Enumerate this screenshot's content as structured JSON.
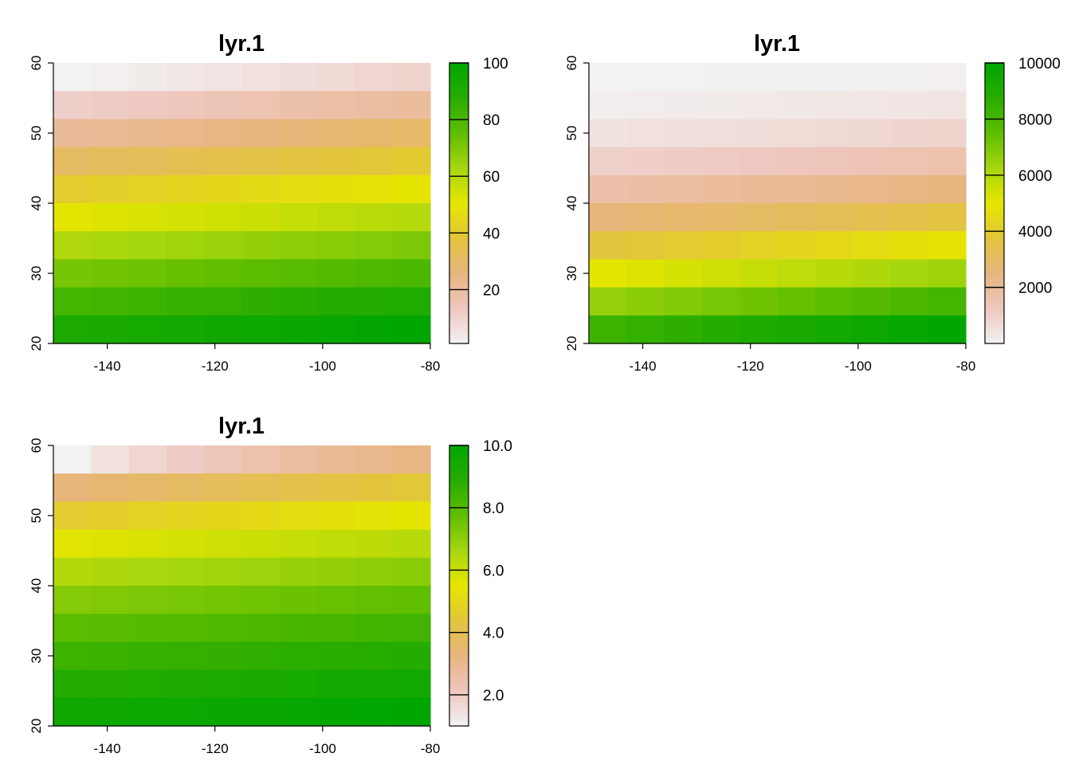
{
  "chart_data": [
    {
      "type": "heatmap",
      "title": "lyr.1",
      "x_ticks": [
        -140,
        -120,
        -100,
        -80
      ],
      "y_ticks": [
        20,
        30,
        40,
        50,
        60
      ],
      "xlim": [
        -150,
        -80
      ],
      "ylim": [
        20,
        60
      ],
      "grid": false,
      "legend": {
        "position": "right",
        "range": [
          1,
          100
        ],
        "ticks": [
          20,
          40,
          60,
          80,
          100
        ],
        "tick_labels": [
          "20",
          "40",
          "60",
          "80",
          "100"
        ]
      },
      "ncols": 10,
      "nrows": 10,
      "cells": [
        [
          1,
          2,
          3,
          4,
          5,
          6,
          7,
          8,
          9,
          10
        ],
        [
          11,
          12,
          13,
          14,
          15,
          16,
          17,
          18,
          19,
          20
        ],
        [
          21,
          22,
          23,
          24,
          25,
          26,
          27,
          28,
          29,
          30
        ],
        [
          31,
          32,
          33,
          34,
          35,
          36,
          37,
          38,
          39,
          40
        ],
        [
          41,
          42,
          43,
          44,
          45,
          46,
          47,
          48,
          49,
          50
        ],
        [
          51,
          52,
          53,
          54,
          55,
          56,
          57,
          58,
          59,
          60
        ],
        [
          61,
          62,
          63,
          64,
          65,
          66,
          67,
          68,
          69,
          70
        ],
        [
          71,
          72,
          73,
          74,
          75,
          76,
          77,
          78,
          79,
          80
        ],
        [
          81,
          82,
          83,
          84,
          85,
          86,
          87,
          88,
          89,
          90
        ],
        [
          91,
          92,
          93,
          94,
          95,
          96,
          97,
          98,
          99,
          100
        ]
      ]
    },
    {
      "type": "heatmap",
      "title": "lyr.1",
      "x_ticks": [
        -140,
        -120,
        -100,
        -80
      ],
      "y_ticks": [
        20,
        30,
        40,
        50,
        60
      ],
      "xlim": [
        -150,
        -80
      ],
      "ylim": [
        20,
        60
      ],
      "grid": false,
      "legend": {
        "position": "right",
        "range": [
          1,
          10000
        ],
        "ticks": [
          2000,
          4000,
          6000,
          8000,
          10000
        ],
        "tick_labels": [
          "2000",
          "4000",
          "6000",
          "8000",
          "10000"
        ]
      },
      "ncols": 10,
      "nrows": 10,
      "cells": [
        [
          1,
          4,
          9,
          16,
          25,
          36,
          49,
          64,
          81,
          100
        ],
        [
          121,
          144,
          169,
          196,
          225,
          256,
          289,
          324,
          361,
          400
        ],
        [
          441,
          484,
          529,
          576,
          625,
          676,
          729,
          784,
          841,
          900
        ],
        [
          961,
          1024,
          1089,
          1156,
          1225,
          1296,
          1369,
          1444,
          1521,
          1600
        ],
        [
          1681,
          1764,
          1849,
          1936,
          2025,
          2116,
          2209,
          2304,
          2401,
          2500
        ],
        [
          2601,
          2704,
          2809,
          2916,
          3025,
          3136,
          3249,
          3364,
          3481,
          3600
        ],
        [
          3721,
          3844,
          3969,
          4096,
          4225,
          4356,
          4489,
          4624,
          4761,
          4900
        ],
        [
          5041,
          5184,
          5329,
          5476,
          5625,
          5776,
          5929,
          6084,
          6241,
          6400
        ],
        [
          6561,
          6724,
          6889,
          7056,
          7225,
          7396,
          7569,
          7744,
          7921,
          8100
        ],
        [
          8281,
          8464,
          8649,
          8836,
          9025,
          9216,
          9409,
          9604,
          9801,
          10000
        ]
      ]
    },
    {
      "type": "heatmap",
      "title": "lyr.1",
      "x_ticks": [
        -140,
        -120,
        -100,
        -80
      ],
      "y_ticks": [
        20,
        30,
        40,
        50,
        60
      ],
      "xlim": [
        -150,
        -80
      ],
      "ylim": [
        20,
        60
      ],
      "grid": false,
      "legend": {
        "position": "right",
        "range": [
          1,
          10
        ],
        "ticks": [
          2,
          4,
          6,
          8,
          10
        ],
        "tick_labels": [
          "2.0",
          "4.0",
          "6.0",
          "8.0",
          "10.0"
        ]
      },
      "ncols": 10,
      "nrows": 10,
      "cells": [
        [
          1.0,
          1.414,
          1.732,
          2.0,
          2.236,
          2.449,
          2.646,
          2.828,
          3.0,
          3.162
        ],
        [
          3.317,
          3.464,
          3.606,
          3.742,
          3.873,
          4.0,
          4.123,
          4.243,
          4.359,
          4.472
        ],
        [
          4.583,
          4.69,
          4.796,
          4.899,
          5.0,
          5.099,
          5.196,
          5.292,
          5.385,
          5.477
        ],
        [
          5.568,
          5.657,
          5.745,
          5.831,
          5.916,
          6.0,
          6.083,
          6.164,
          6.245,
          6.325
        ],
        [
          6.403,
          6.481,
          6.557,
          6.633,
          6.708,
          6.782,
          6.856,
          6.928,
          7.0,
          7.071
        ],
        [
          7.141,
          7.211,
          7.28,
          7.348,
          7.416,
          7.483,
          7.55,
          7.616,
          7.681,
          7.746
        ],
        [
          7.81,
          7.874,
          7.937,
          8.0,
          8.062,
          8.124,
          8.185,
          8.246,
          8.307,
          8.367
        ],
        [
          8.426,
          8.485,
          8.544,
          8.602,
          8.66,
          8.718,
          8.775,
          8.832,
          8.888,
          8.944
        ],
        [
          9.0,
          9.055,
          9.11,
          9.165,
          9.22,
          9.274,
          9.327,
          9.381,
          9.434,
          9.487
        ],
        [
          9.539,
          9.592,
          9.644,
          9.695,
          9.747,
          9.798,
          9.849,
          9.899,
          9.95,
          10.0
        ]
      ]
    }
  ],
  "colors": {
    "ramp": [
      "#f2f2f2",
      "#eec7bf",
      "#e8b47f",
      "#e2c53c",
      "#e6e600",
      "#a6d60e",
      "#5fbe00",
      "#27ac00",
      "#00a600"
    ]
  }
}
